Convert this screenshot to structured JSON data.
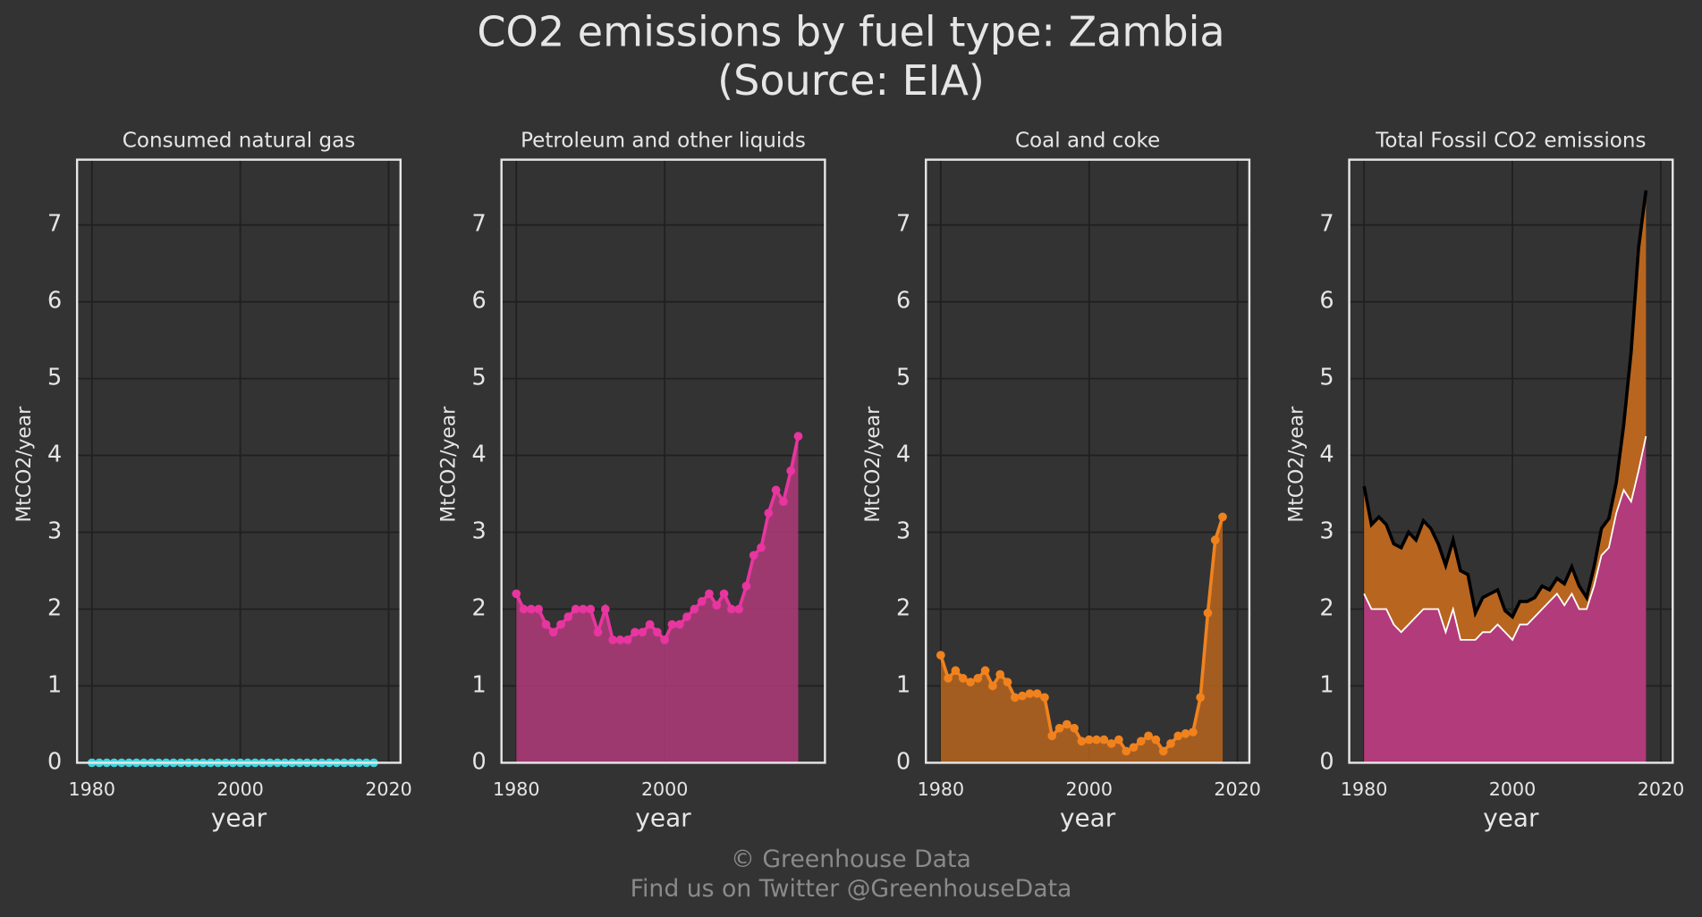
{
  "title": "CO2 emissions by fuel type: Zambia",
  "subtitle": "(Source: EIA)",
  "footer": [
    "© Greenhouse Data",
    "Find us on Twitter @GreenhouseData"
  ],
  "chart_data": [
    {
      "type": "line",
      "title": "Consumed natural gas",
      "xlabel": "year",
      "ylabel": "MtCO2/year",
      "x": [
        1980,
        1981,
        1982,
        1983,
        1984,
        1985,
        1986,
        1987,
        1988,
        1989,
        1990,
        1991,
        1992,
        1993,
        1994,
        1995,
        1996,
        1997,
        1998,
        1999,
        2000,
        2001,
        2002,
        2003,
        2004,
        2005,
        2006,
        2007,
        2008,
        2009,
        2010,
        2011,
        2012,
        2013,
        2014,
        2015,
        2016,
        2017,
        2018
      ],
      "series": [
        {
          "color": "#3ed6e0",
          "fill": false,
          "values": [
            0,
            0,
            0,
            0,
            0,
            0,
            0,
            0,
            0,
            0,
            0,
            0,
            0,
            0,
            0,
            0,
            0,
            0,
            0,
            0,
            0,
            0,
            0,
            0,
            0,
            0,
            0,
            0,
            0,
            0,
            0,
            0,
            0,
            0,
            0,
            0,
            0,
            0,
            0
          ]
        }
      ],
      "xlim": [
        1978,
        2021.6
      ],
      "ylim": [
        0,
        7.85
      ],
      "xticks": [
        1980,
        2000,
        2020
      ],
      "yticks": [
        0,
        1,
        2,
        3,
        4,
        5,
        6,
        7
      ],
      "grid": true
    },
    {
      "type": "line",
      "title": "Petroleum and other liquids",
      "xlabel": "year",
      "ylabel": "MtCO2/year",
      "x": [
        1980,
        1981,
        1982,
        1983,
        1984,
        1985,
        1986,
        1987,
        1988,
        1989,
        1990,
        1991,
        1992,
        1993,
        1994,
        1995,
        1996,
        1997,
        1998,
        1999,
        2000,
        2001,
        2002,
        2003,
        2004,
        2005,
        2006,
        2007,
        2008,
        2009,
        2010,
        2011,
        2012,
        2013,
        2014,
        2015,
        2016,
        2017,
        2018
      ],
      "series": [
        {
          "color": "#e8359f",
          "fill_color": "#b23b7b",
          "fill": true,
          "values": [
            2.2,
            2.0,
            2.0,
            2.0,
            1.8,
            1.7,
            1.8,
            1.9,
            2.0,
            2.0,
            2.0,
            1.7,
            2.0,
            1.6,
            1.6,
            1.6,
            1.7,
            1.7,
            1.8,
            1.7,
            1.6,
            1.8,
            1.8,
            1.9,
            2.0,
            2.1,
            2.2,
            2.05,
            2.2,
            2.0,
            2.0,
            2.3,
            2.7,
            2.8,
            3.25,
            3.55,
            3.4,
            3.8,
            4.25
          ]
        }
      ],
      "xlim": [
        1978,
        2021.6
      ],
      "ylim": [
        0,
        7.85
      ],
      "xticks": [
        1980,
        2000
      ],
      "yticks": [
        0,
        1,
        2,
        3,
        4,
        5,
        6,
        7
      ],
      "grid": true
    },
    {
      "type": "line",
      "title": "Coal and coke",
      "xlabel": "year",
      "ylabel": "MtCO2/year",
      "x": [
        1980,
        1981,
        1982,
        1983,
        1984,
        1985,
        1986,
        1987,
        1988,
        1989,
        1990,
        1991,
        1992,
        1993,
        1994,
        1995,
        1996,
        1997,
        1998,
        1999,
        2000,
        2001,
        2002,
        2003,
        2004,
        2005,
        2006,
        2007,
        2008,
        2009,
        2010,
        2011,
        2012,
        2013,
        2014,
        2015,
        2016,
        2017,
        2018
      ],
      "series": [
        {
          "color": "#f0821e",
          "fill_color": "#b8651f",
          "fill": true,
          "values": [
            1.4,
            1.1,
            1.2,
            1.1,
            1.05,
            1.1,
            1.2,
            1.0,
            1.15,
            1.05,
            0.85,
            0.87,
            0.9,
            0.9,
            0.85,
            0.35,
            0.45,
            0.5,
            0.45,
            0.28,
            0.3,
            0.3,
            0.3,
            0.25,
            0.3,
            0.15,
            0.2,
            0.28,
            0.35,
            0.3,
            0.15,
            0.25,
            0.35,
            0.38,
            0.4,
            0.85,
            1.95,
            2.9,
            3.2
          ]
        }
      ],
      "xlim": [
        1978,
        2021.6
      ],
      "ylim": [
        0,
        7.85
      ],
      "xticks": [
        1980,
        2000,
        2020
      ],
      "yticks": [
        0,
        1,
        2,
        3,
        4,
        5,
        6,
        7
      ],
      "grid": true
    },
    {
      "type": "stacked_area",
      "title": "Total Fossil CO2 emissions",
      "xlabel": "year",
      "ylabel": "MtCO2/year",
      "x": [
        1980,
        1981,
        1982,
        1983,
        1984,
        1985,
        1986,
        1987,
        1988,
        1989,
        1990,
        1991,
        1992,
        1993,
        1994,
        1995,
        1996,
        1997,
        1998,
        1999,
        2000,
        2001,
        2002,
        2003,
        2004,
        2005,
        2006,
        2007,
        2008,
        2009,
        2010,
        2011,
        2012,
        2013,
        2014,
        2015,
        2016,
        2017,
        2018
      ],
      "series": [
        {
          "color": "#ffffff",
          "fill_color": "#b23b7b",
          "values": [
            2.2,
            2.0,
            2.0,
            2.0,
            1.8,
            1.7,
            1.8,
            1.9,
            2.0,
            2.0,
            2.0,
            1.7,
            2.0,
            1.6,
            1.6,
            1.6,
            1.7,
            1.7,
            1.8,
            1.7,
            1.6,
            1.8,
            1.8,
            1.9,
            2.0,
            2.1,
            2.2,
            2.05,
            2.2,
            2.0,
            2.0,
            2.3,
            2.7,
            2.8,
            3.25,
            3.55,
            3.4,
            3.8,
            4.25
          ]
        },
        {
          "color": "#000000",
          "fill_color": "#b8651f",
          "values": [
            1.4,
            1.1,
            1.2,
            1.1,
            1.05,
            1.1,
            1.2,
            1.0,
            1.15,
            1.05,
            0.85,
            0.87,
            0.9,
            0.9,
            0.85,
            0.35,
            0.45,
            0.5,
            0.45,
            0.28,
            0.3,
            0.3,
            0.3,
            0.25,
            0.3,
            0.15,
            0.2,
            0.28,
            0.35,
            0.3,
            0.15,
            0.25,
            0.35,
            0.38,
            0.4,
            0.85,
            1.95,
            2.9,
            3.2
          ]
        }
      ],
      "xlim": [
        1978,
        2021.6
      ],
      "ylim": [
        0,
        7.85
      ],
      "xticks": [
        1980,
        2000,
        2020
      ],
      "yticks": [
        0,
        1,
        2,
        3,
        4,
        5,
        6,
        7
      ],
      "grid": true
    }
  ]
}
